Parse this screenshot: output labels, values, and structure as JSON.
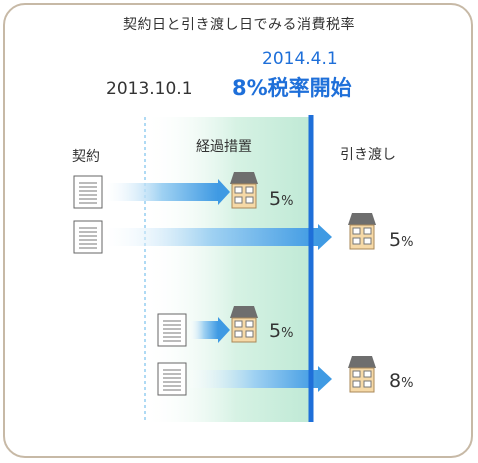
{
  "title": "契約日と引き渡し日でみる消費税率",
  "dates": {
    "transition_start": "2013.10.1",
    "tax_start_date": "2014.4.1",
    "tax_start_label": "8%税率開始"
  },
  "columns": {
    "contract": "契約",
    "transition": "経過措置",
    "delivery": "引き渡し"
  },
  "cases": [
    {
      "rate": "5",
      "unit": "%"
    },
    {
      "rate": "5",
      "unit": "%"
    },
    {
      "rate": "5",
      "unit": "%"
    },
    {
      "rate": "8",
      "unit": "%"
    }
  ],
  "colors": {
    "accent_blue": "#1e6fd9",
    "transition_band": "#c9eedc",
    "frame_border": "#c7b9a6",
    "arrow_blue": "#4aa3e6"
  }
}
